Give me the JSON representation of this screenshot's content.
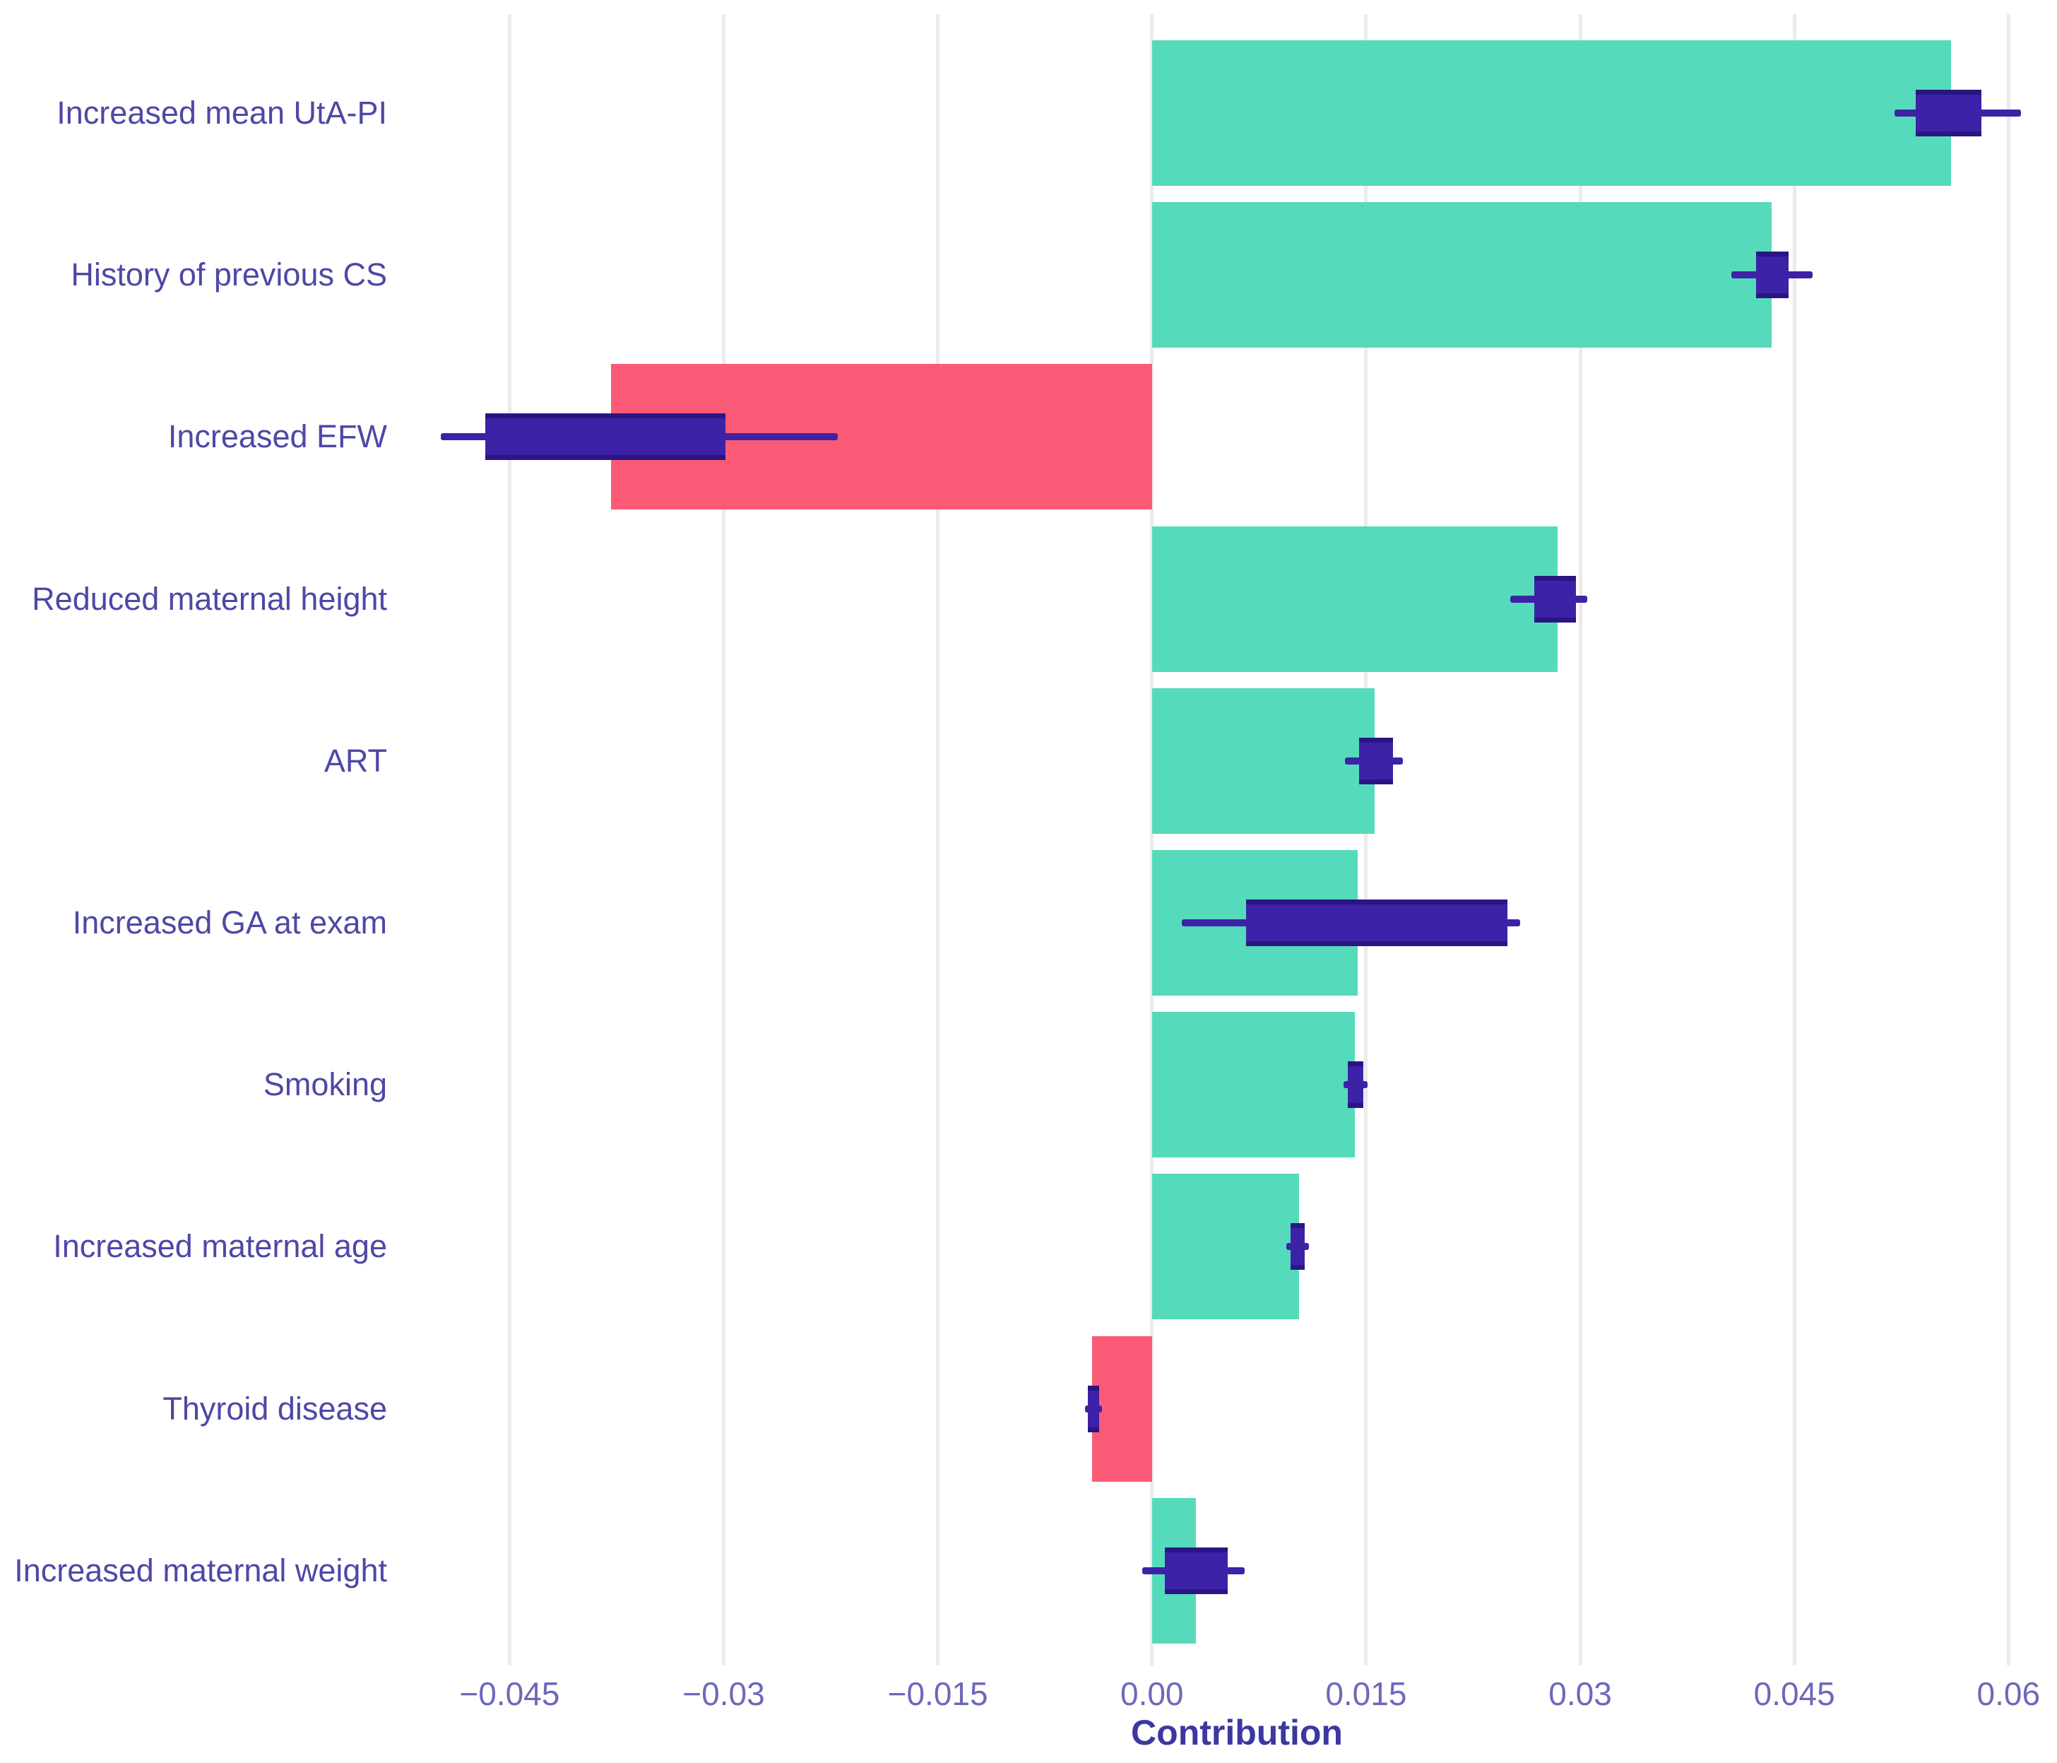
{
  "chart_data": {
    "type": "bar",
    "orientation": "horizontal",
    "xlabel": "Contribution",
    "ylabel": "",
    "grid": "vertical-only",
    "legend": "none",
    "xlim": [
      -0.0515,
      0.0634
    ],
    "x_ticks": [
      -0.045,
      -0.03,
      -0.015,
      0,
      0.015,
      0.03,
      0.045,
      0.06
    ],
    "x_tick_labels": [
      "−0.045",
      "−0.03",
      "−0.015",
      "0.00",
      "0.015",
      "0.03",
      "0.045",
      "0.06"
    ],
    "categories": [
      "Increased mean UtA-PI",
      "History of previous CS",
      "Increased EFW",
      "Reduced maternal height",
      "ART",
      "Increased GA at exam",
      "Smoking",
      "Increased maternal age",
      "Thyroid disease",
      "Increased maternal weight"
    ],
    "series": [
      {
        "name": "Contribution",
        "values": [
          0.056,
          0.0434,
          -0.0379,
          0.0284,
          0.0156,
          0.0144,
          0.0142,
          0.0103,
          -0.0042,
          0.0031
        ]
      }
    ],
    "error_box_low": [
      0.0535,
      0.0423,
      -0.0467,
      0.0268,
      0.0145,
      0.0066,
      0.0137,
      0.0097,
      -0.0045,
      0.0009
    ],
    "error_box_high": [
      0.0581,
      0.0446,
      -0.0299,
      0.0297,
      0.0169,
      0.0249,
      0.0148,
      0.0107,
      -0.0037,
      0.0053
    ],
    "whisker_low": [
      0.052,
      0.0406,
      -0.0498,
      0.0251,
      0.0135,
      0.0021,
      0.0134,
      0.0094,
      -0.0047,
      -0.0007
    ],
    "whisker_high": [
      0.0609,
      0.0463,
      -0.022,
      0.0305,
      0.0176,
      0.0258,
      0.0151,
      0.011,
      -0.0035,
      0.0065
    ],
    "colors": {
      "positive_bar": "#55dbbb",
      "negative_bar": "#fb5a76",
      "error_marker": "#3d22a8",
      "error_marker_edge": "#2a1583",
      "gridline": "#ebebee",
      "category_label": "#4d48a6",
      "tick_label": "#6c68bb",
      "axis_title": "#3c38a0",
      "background": "#ffffff"
    }
  }
}
